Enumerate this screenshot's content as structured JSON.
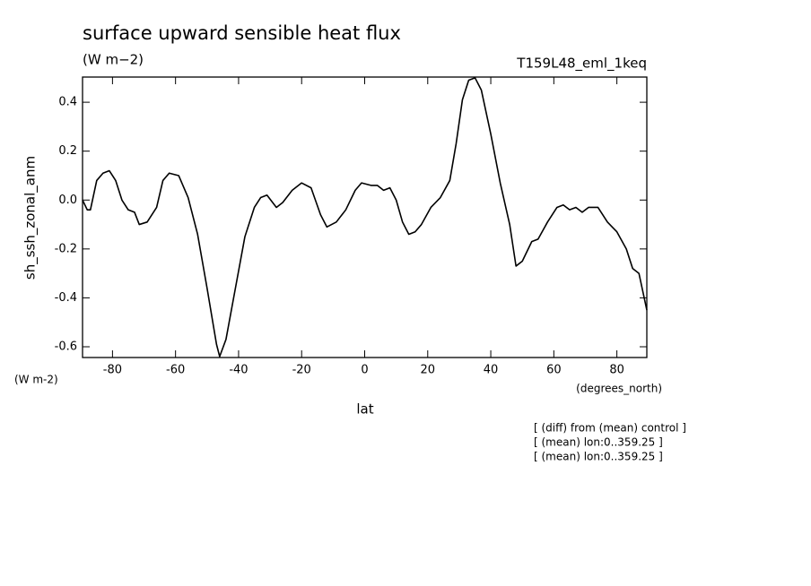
{
  "chart_data": {
    "type": "line",
    "title": "surface upward sensible heat flux",
    "units": "(W m−2)",
    "run_label": "T159L48_eml_1keq",
    "y_label": "sh_ssh_zonal_anm",
    "y_units": "(W m-2)",
    "x_units": "(degrees_north)",
    "x_label": "lat",
    "notes": [
      "[ (diff) from (mean) control ]",
      "[ (mean) lon:0..359.25 ]",
      "[ (mean) lon:0..359.25 ]"
    ],
    "x": [
      -89.5,
      -88,
      -87,
      -85,
      -83,
      -81,
      -79,
      -77,
      -75,
      -73,
      -71.5,
      -69,
      -66,
      -64,
      -62,
      -59,
      -56,
      -53,
      -50,
      -47,
      -46,
      -44,
      -41,
      -38,
      -35,
      -33,
      -31,
      -28,
      -26,
      -23,
      -20,
      -17,
      -14,
      -12,
      -9,
      -6,
      -3,
      -1,
      2,
      4,
      6,
      8,
      10,
      12,
      14,
      16,
      18,
      21,
      24,
      27,
      29,
      31,
      33,
      35,
      37,
      40,
      43,
      46,
      48,
      50,
      53,
      55,
      58,
      61,
      63,
      65,
      67,
      69,
      71,
      74,
      77,
      80,
      83,
      85,
      87,
      89.5
    ],
    "series": [
      {
        "name": "sh_ssh_zonal_anm",
        "color": "#000000",
        "values": [
          0.0,
          -0.04,
          -0.04,
          0.08,
          0.11,
          0.12,
          0.08,
          0.0,
          -0.04,
          -0.05,
          -0.1,
          -0.09,
          -0.03,
          0.08,
          0.11,
          0.1,
          0.01,
          -0.14,
          -0.36,
          -0.59,
          -0.64,
          -0.57,
          -0.36,
          -0.15,
          -0.03,
          0.01,
          0.02,
          -0.03,
          -0.01,
          0.04,
          0.07,
          0.05,
          -0.06,
          -0.11,
          -0.09,
          -0.04,
          0.04,
          0.07,
          0.06,
          0.06,
          0.04,
          0.05,
          0.0,
          -0.09,
          -0.14,
          -0.13,
          -0.1,
          -0.03,
          0.01,
          0.08,
          0.23,
          0.41,
          0.49,
          0.5,
          0.45,
          0.27,
          0.07,
          -0.1,
          -0.27,
          -0.25,
          -0.17,
          -0.16,
          -0.09,
          -0.03,
          -0.02,
          -0.04,
          -0.03,
          -0.05,
          -0.03,
          -0.03,
          -0.09,
          -0.13,
          -0.2,
          -0.28,
          -0.3,
          -0.45
        ]
      }
    ],
    "xlim": [
      -89.5,
      89.5
    ],
    "ylim": [
      -0.644,
      0.503
    ],
    "xticks": [
      -80,
      -60,
      -40,
      -20,
      0,
      20,
      40,
      60,
      80
    ],
    "yticks": [
      -0.6,
      -0.4,
      -0.2,
      {
        "value": 0,
        "label": "0.0"
      },
      0.2,
      0.4
    ]
  }
}
